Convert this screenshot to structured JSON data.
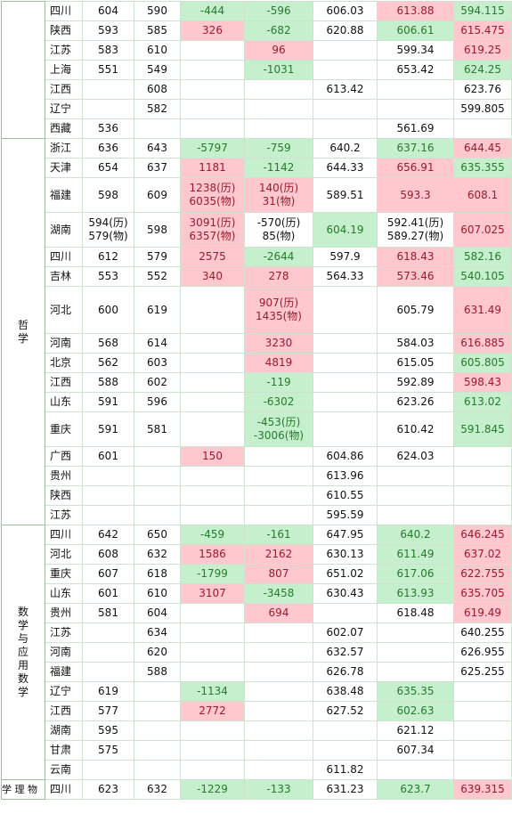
{
  "groups": [
    {
      "major": "",
      "rows": [
        {
          "p": "四川",
          "a": "604",
          "b": "590",
          "c": "-444",
          "d": "-596",
          "e": "606.03",
          "f": "613.88",
          "g": "594.115",
          "cs": "g",
          "ds": "g",
          "fs": "r",
          "gs": "g"
        },
        {
          "p": "陕西",
          "a": "593",
          "b": "585",
          "c": "326",
          "d": "-682",
          "e": "620.88",
          "f": "606.61",
          "g": "615.475",
          "cs": "r",
          "ds": "g",
          "fs": "g",
          "gs": "r"
        },
        {
          "p": "江苏",
          "a": "583",
          "b": "610",
          "c": "",
          "d": "96",
          "e": "",
          "f": "599.34",
          "g": "619.25",
          "cs": "",
          "ds": "r",
          "fs": "",
          "gs": "r"
        },
        {
          "p": "上海",
          "a": "551",
          "b": "549",
          "c": "",
          "d": "-1031",
          "e": "",
          "f": "653.42",
          "g": "624.25",
          "cs": "",
          "ds": "g",
          "fs": "",
          "gs": "g"
        },
        {
          "p": "江西",
          "a": "",
          "b": "608",
          "c": "",
          "d": "",
          "e": "613.42",
          "f": "",
          "g": "623.76",
          "cs": "",
          "ds": "",
          "fs": "",
          "gs": ""
        },
        {
          "p": "辽宁",
          "a": "",
          "b": "582",
          "c": "",
          "d": "",
          "e": "",
          "f": "",
          "g": "599.805",
          "cs": "",
          "ds": "",
          "fs": "",
          "gs": ""
        },
        {
          "p": "西藏",
          "a": "536",
          "b": "",
          "c": "",
          "d": "",
          "e": "",
          "f": "561.69",
          "g": "",
          "cs": "",
          "ds": "",
          "fs": "",
          "gs": ""
        }
      ]
    },
    {
      "major": "哲学",
      "rows": [
        {
          "p": "浙江",
          "a": "636",
          "b": "643",
          "c": "-5797",
          "d": "-759",
          "e": "640.2",
          "f": "637.16",
          "g": "644.45",
          "cs": "g",
          "ds": "g",
          "fs": "g",
          "gs": "r"
        },
        {
          "p": "天津",
          "a": "654",
          "b": "637",
          "c": "1181",
          "d": "-1142",
          "e": "644.33",
          "f": "656.91",
          "g": "635.355",
          "cs": "r",
          "ds": "g",
          "fs": "r",
          "gs": "g"
        },
        {
          "p": "福建",
          "a": "598",
          "b": "609",
          "c": "1238(历)\n6035(物)",
          "d": "140(历)\n31(物)",
          "e": "589.51",
          "f": "593.3",
          "g": "608.1",
          "cs": "r",
          "ds": "r",
          "fs": "r",
          "gs": "r",
          "h": "tall"
        },
        {
          "p": "湖南",
          "a": "594(历)\n579(物)",
          "b": "598",
          "c": "3091(历)\n6357(物)",
          "d": "-570(历)\n85(物)",
          "e": "604.19",
          "f": "592.41(历)\n589.27(物)",
          "g": "607.025",
          "cs": "r",
          "ds": "",
          "fs": "",
          "gs": "r",
          "es": "g",
          "h": "tall"
        },
        {
          "p": "四川",
          "a": "612",
          "b": "579",
          "c": "2575",
          "d": "-2644",
          "e": "597.9",
          "f": "618.43",
          "g": "582.16",
          "cs": "r",
          "ds": "g",
          "fs": "r",
          "gs": "g"
        },
        {
          "p": "吉林",
          "a": "553",
          "b": "552",
          "c": "340",
          "d": "278",
          "e": "564.33",
          "f": "573.46",
          "g": "540.105",
          "cs": "r",
          "ds": "r",
          "fs": "r",
          "gs": "g"
        },
        {
          "p": "河北",
          "a": "600",
          "b": "619",
          "c": "",
          "d": "907(历)\n1435(物)",
          "e": "",
          "f": "605.79",
          "g": "631.49",
          "cs": "",
          "ds": "r",
          "fs": "",
          "gs": "r",
          "h": "xtall"
        },
        {
          "p": "河南",
          "a": "568",
          "b": "614",
          "c": "",
          "d": "3230",
          "e": "",
          "f": "584.03",
          "g": "616.885",
          "cs": "",
          "ds": "r",
          "fs": "",
          "gs": "r"
        },
        {
          "p": "北京",
          "a": "562",
          "b": "603",
          "c": "",
          "d": "4819",
          "e": "",
          "f": "615.05",
          "g": "605.805",
          "cs": "",
          "ds": "r",
          "fs": "",
          "gs": "g"
        },
        {
          "p": "江西",
          "a": "588",
          "b": "602",
          "c": "",
          "d": "-119",
          "e": "",
          "f": "592.89",
          "g": "598.43",
          "cs": "",
          "ds": "g",
          "fs": "",
          "gs": "r"
        },
        {
          "p": "山东",
          "a": "591",
          "b": "596",
          "c": "",
          "d": "-6302",
          "e": "",
          "f": "623.26",
          "g": "613.02",
          "cs": "",
          "ds": "g",
          "fs": "",
          "gs": "g"
        },
        {
          "p": "重庆",
          "a": "591",
          "b": "581",
          "c": "",
          "d": "-453(历)\n-3006(物)",
          "e": "",
          "f": "610.42",
          "g": "591.845",
          "cs": "",
          "ds": "g",
          "fs": "",
          "gs": "g",
          "h": "tall"
        },
        {
          "p": "广西",
          "a": "601",
          "b": "",
          "c": "150",
          "d": "",
          "e": "604.86",
          "f": "624.03",
          "g": "",
          "cs": "r",
          "ds": "",
          "fs": "",
          "gs": ""
        },
        {
          "p": "贵州",
          "a": "",
          "b": "",
          "c": "",
          "d": "",
          "e": "613.96",
          "f": "",
          "g": "",
          "cs": "",
          "ds": "",
          "fs": "",
          "gs": ""
        },
        {
          "p": "陕西",
          "a": "",
          "b": "",
          "c": "",
          "d": "",
          "e": "610.55",
          "f": "",
          "g": "",
          "cs": "",
          "ds": "",
          "fs": "",
          "gs": ""
        },
        {
          "p": "江苏",
          "a": "",
          "b": "",
          "c": "",
          "d": "",
          "e": "595.59",
          "f": "",
          "g": "",
          "cs": "",
          "ds": "",
          "fs": "",
          "gs": ""
        }
      ]
    },
    {
      "major": "数学与应用数学",
      "rows": [
        {
          "p": "四川",
          "a": "642",
          "b": "650",
          "c": "-459",
          "d": "-161",
          "e": "647.95",
          "f": "640.2",
          "g": "646.245",
          "cs": "g",
          "ds": "g",
          "fs": "g",
          "gs": "r"
        },
        {
          "p": "河北",
          "a": "608",
          "b": "632",
          "c": "1586",
          "d": "2162",
          "e": "630.13",
          "f": "611.49",
          "g": "637.02",
          "cs": "r",
          "ds": "r",
          "fs": "g",
          "gs": "r"
        },
        {
          "p": "重庆",
          "a": "607",
          "b": "618",
          "c": "-1799",
          "d": "807",
          "e": "651.02",
          "f": "617.06",
          "g": "622.755",
          "cs": "g",
          "ds": "r",
          "fs": "g",
          "gs": "r"
        },
        {
          "p": "山东",
          "a": "601",
          "b": "610",
          "c": "3107",
          "d": "-3458",
          "e": "630.43",
          "f": "613.93",
          "g": "635.705",
          "cs": "r",
          "ds": "g",
          "fs": "g",
          "gs": "r"
        },
        {
          "p": "贵州",
          "a": "581",
          "b": "604",
          "c": "",
          "d": "694",
          "e": "",
          "f": "618.48",
          "g": "619.49",
          "cs": "",
          "ds": "r",
          "fs": "",
          "gs": "r"
        },
        {
          "p": "江苏",
          "a": "",
          "b": "634",
          "c": "",
          "d": "",
          "e": "602.07",
          "f": "",
          "g": "640.255",
          "cs": "",
          "ds": "",
          "fs": "",
          "gs": ""
        },
        {
          "p": "河南",
          "a": "",
          "b": "620",
          "c": "",
          "d": "",
          "e": "632.57",
          "f": "",
          "g": "626.955",
          "cs": "",
          "ds": "",
          "fs": "",
          "gs": ""
        },
        {
          "p": "福建",
          "a": "",
          "b": "588",
          "c": "",
          "d": "",
          "e": "626.78",
          "f": "",
          "g": "625.255",
          "cs": "",
          "ds": "",
          "fs": "",
          "gs": ""
        },
        {
          "p": "辽宁",
          "a": "619",
          "b": "",
          "c": "-1134",
          "d": "",
          "e": "638.48",
          "f": "635.35",
          "g": "",
          "cs": "g",
          "ds": "",
          "fs": "g",
          "gs": ""
        },
        {
          "p": "江西",
          "a": "577",
          "b": "",
          "c": "2772",
          "d": "",
          "e": "627.52",
          "f": "602.63",
          "g": "",
          "cs": "r",
          "ds": "",
          "fs": "g",
          "gs": ""
        },
        {
          "p": "湖南",
          "a": "595",
          "b": "",
          "c": "",
          "d": "",
          "e": "",
          "f": "621.12",
          "g": "",
          "cs": "",
          "ds": "",
          "fs": "",
          "gs": ""
        },
        {
          "p": "甘肃",
          "a": "575",
          "b": "",
          "c": "",
          "d": "",
          "e": "",
          "f": "607.34",
          "g": "",
          "cs": "",
          "ds": "",
          "fs": "",
          "gs": ""
        },
        {
          "p": "云南",
          "a": "",
          "b": "",
          "c": "",
          "d": "",
          "e": "611.82",
          "f": "",
          "g": "",
          "cs": "",
          "ds": "",
          "fs": "",
          "gs": ""
        }
      ]
    },
    {
      "major": "学 理 物",
      "rows": [
        {
          "p": "四川",
          "a": "623",
          "b": "632",
          "c": "-1229",
          "d": "-133",
          "e": "631.23",
          "f": "623.7",
          "g": "639.315",
          "cs": "g",
          "ds": "g",
          "fs": "g",
          "gs": "r"
        }
      ]
    }
  ]
}
